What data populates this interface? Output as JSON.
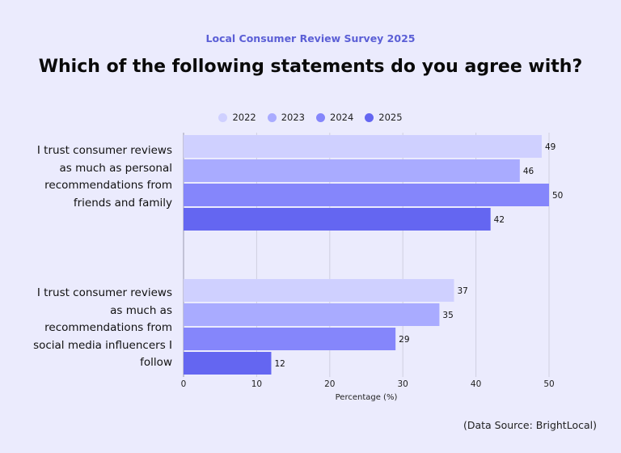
{
  "chart_data": {
    "type": "bar",
    "orientation": "horizontal",
    "subtitle": "Local Consumer Review Survey 2025",
    "title": "Which of the following statements do you agree with?",
    "categories": [
      "I trust consumer reviews as much as personal recommendations from friends and family",
      "I trust consumer reviews as much as recommendations from social media influencers I follow"
    ],
    "series": [
      {
        "name": "2022",
        "color": "#cfd0ff",
        "values": [
          49,
          37
        ]
      },
      {
        "name": "2023",
        "color": "#a9abff",
        "values": [
          46,
          35
        ]
      },
      {
        "name": "2024",
        "color": "#8586fb",
        "values": [
          50,
          29
        ]
      },
      {
        "name": "2025",
        "color": "#6466f1",
        "values": [
          42,
          12
        ]
      }
    ],
    "xlabel": "Percentage (%)",
    "xlim": [
      0,
      50
    ],
    "xticks": [
      0,
      10,
      20,
      30,
      40,
      50
    ],
    "grid": true,
    "legend_position": "top",
    "source": "(Data Source: BrightLocal)"
  }
}
